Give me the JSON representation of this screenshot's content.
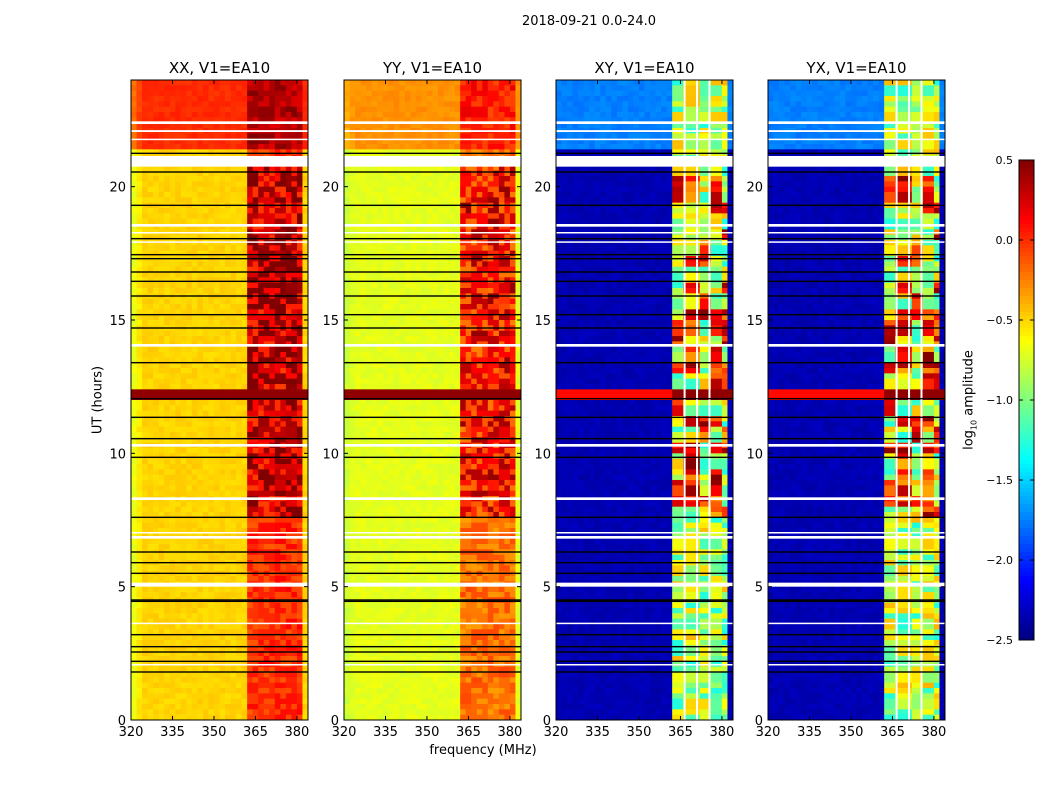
{
  "chart_data": {
    "type": "heatmap",
    "title": "2018-09-21 0.0-24.0",
    "xlabel": "frequency (MHz)",
    "ylabel": "UT (hours)",
    "xlim": [
      320,
      384
    ],
    "ylim": [
      0,
      24
    ],
    "xticks": [
      320,
      335,
      350,
      365,
      380
    ],
    "yticks": [
      0,
      5,
      10,
      15,
      20
    ],
    "colormap": "jet",
    "colorbar": {
      "label_main": "log",
      "label_sub": "10",
      "label_rest": " amplitude",
      "range": [
        -2.5,
        0.5
      ],
      "ticks": [
        "0.5",
        "0.0",
        "−0.5",
        "−1.0",
        "−1.5",
        "−2.0",
        "−2.5"
      ],
      "tick_values": [
        0.5,
        0.0,
        -0.5,
        -1.0,
        -1.5,
        -2.0,
        -2.5
      ]
    },
    "rfi_band_mhz": [
      362,
      382
    ],
    "panels": [
      {
        "title": "XX, V1=EA10",
        "kind": "parallel",
        "top_level": 0.0,
        "base_level": -0.5,
        "edge_level": -0.75,
        "rfi_level": 0.2
      },
      {
        "title": "YY, V1=EA10",
        "kind": "parallel",
        "top_level": -0.3,
        "base_level": -0.7,
        "edge_level": -0.8,
        "rfi_level": 0.15
      },
      {
        "title": "XY, V1=EA10",
        "kind": "cross",
        "top_level": -1.75,
        "base_level": -2.35,
        "edge_level": -2.35,
        "rfi_level": -0.85
      },
      {
        "title": "YX, V1=EA10",
        "kind": "cross",
        "top_level": -1.75,
        "base_level": -2.35,
        "edge_level": -2.35,
        "rfi_level": -0.85
      }
    ],
    "hot_row_hours": [
      12.1,
      12.45
    ],
    "white_flag_hours": [
      [
        20.75,
        21.15
      ],
      [
        22.35,
        22.45
      ],
      [
        22.05,
        22.12
      ],
      [
        21.75,
        21.8
      ],
      [
        18.5,
        18.6
      ],
      [
        18.25,
        18.3
      ],
      [
        17.9,
        17.95
      ],
      [
        14.0,
        14.1
      ],
      [
        10.25,
        10.35
      ],
      [
        8.25,
        8.35
      ],
      [
        7.0,
        7.05
      ],
      [
        6.8,
        6.9
      ],
      [
        5.0,
        5.15
      ],
      [
        3.6,
        3.65
      ],
      [
        2.05,
        2.1
      ]
    ],
    "black_flag_hours": [
      21.25,
      20.55,
      19.3,
      18.05,
      17.45,
      17.3,
      16.8,
      16.45,
      15.9,
      15.2,
      14.7,
      13.4,
      12.05,
      11.35,
      10.55,
      9.85,
      7.6,
      6.3,
      5.9,
      5.5,
      4.45,
      4.5,
      3.2,
      2.75,
      2.55,
      2.2,
      1.8
    ],
    "cross_flagged_channels_mhz": [
      366.5,
      371,
      375.5
    ]
  }
}
